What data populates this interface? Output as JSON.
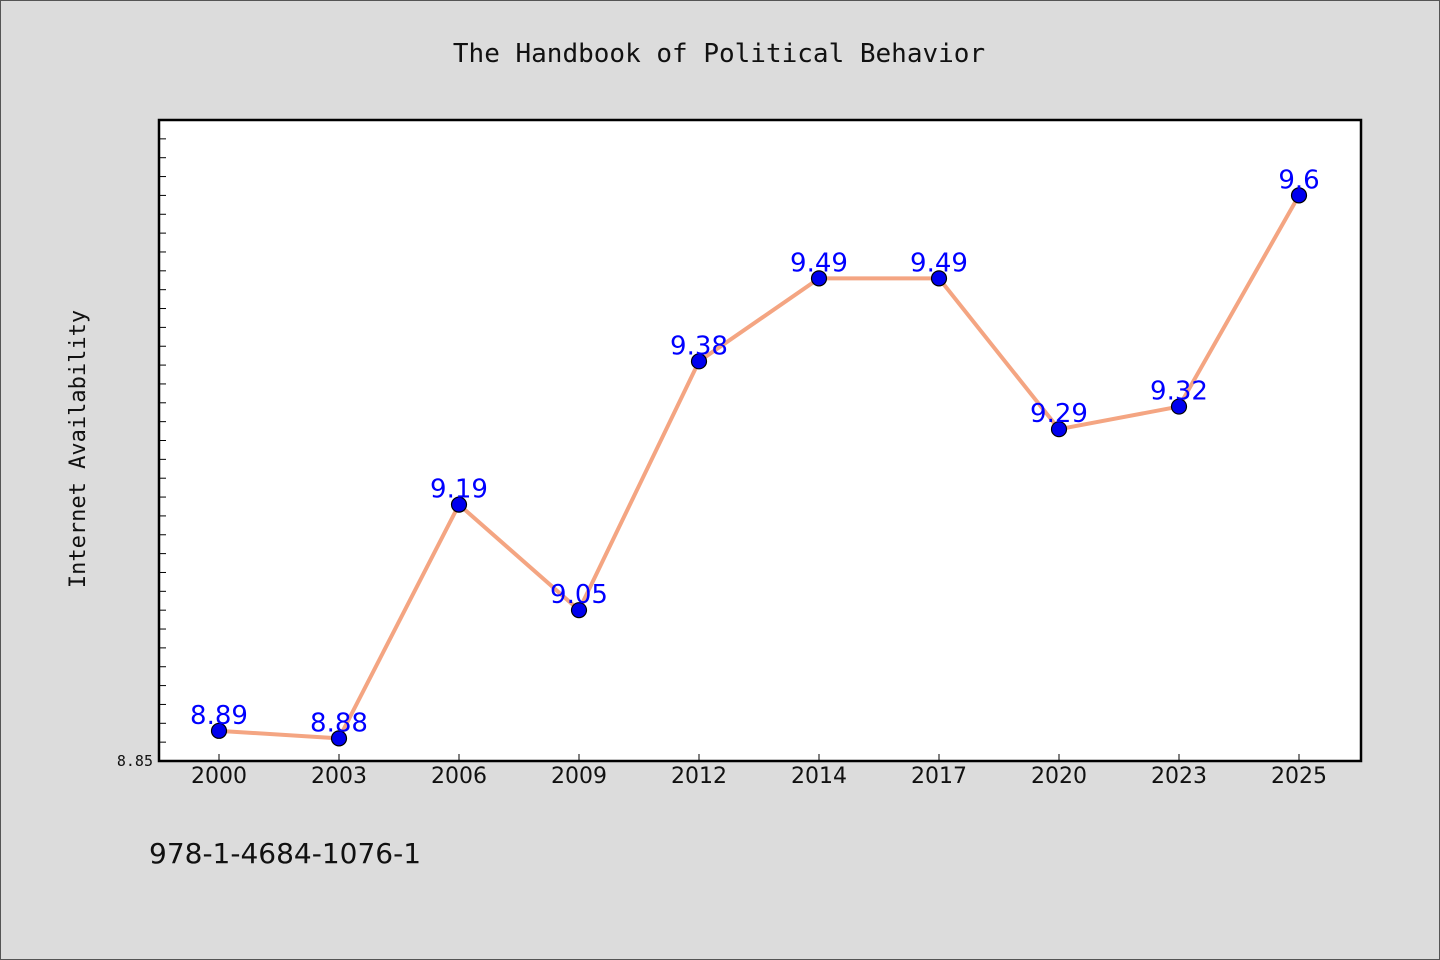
{
  "chart_data": {
    "type": "line",
    "title": "The Handbook of Political Behavior",
    "xlabel": "",
    "ylabel": "Internet Availability",
    "categories": [
      "2000",
      "2003",
      "2006",
      "2009",
      "2012",
      "2014",
      "2017",
      "2020",
      "2023",
      "2025"
    ],
    "series": [
      {
        "values": [
          8.89,
          8.88,
          9.19,
          9.05,
          9.38,
          9.49,
          9.49,
          9.29,
          9.32,
          9.6
        ]
      }
    ],
    "data_labels": [
      "8.89",
      "8.88",
      "9.19",
      "9.05",
      "9.38",
      "9.49",
      "9.49",
      "9.29",
      "9.32",
      "9.6"
    ],
    "yticks": [
      "8.85"
    ],
    "ylim": [
      8.85,
      9.7
    ],
    "grid": false,
    "legend": "none",
    "line_color": "#f4a582",
    "marker_color": "#0000ee",
    "label_color": "#0000ff",
    "plot_background": "#ffffff",
    "page_background": "#dcdcdc"
  },
  "footer": {
    "isbn": "978-1-4684-1076-1"
  }
}
